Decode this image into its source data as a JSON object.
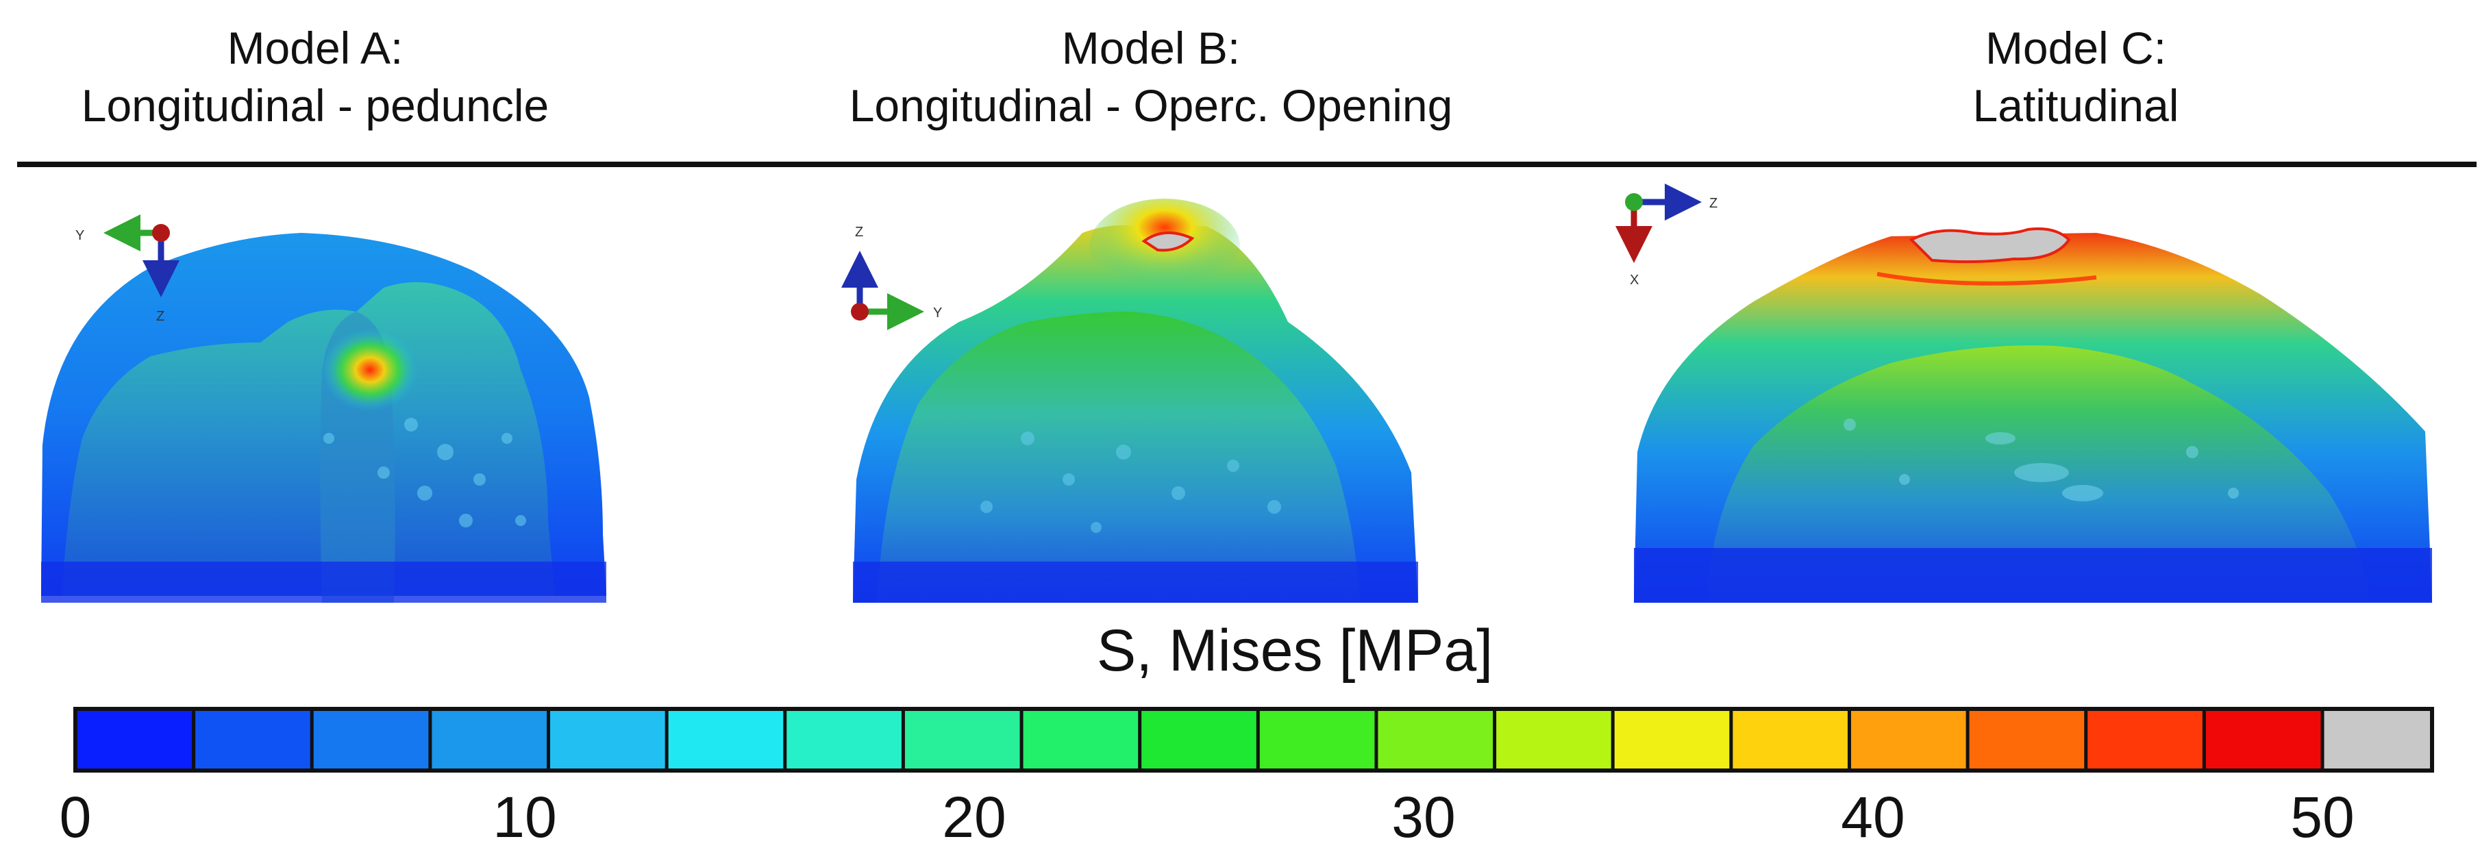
{
  "titles": [
    {
      "line1": "Model A:",
      "line2": "Longitudinal - peduncle"
    },
    {
      "line1": "Model B:",
      "line2": "Longitudinal - Operc. Opening"
    },
    {
      "line1": "Model C:",
      "line2": "Latitudinal"
    }
  ],
  "axes": {
    "model_a": {
      "horizontal": "Y",
      "vertical": "Z"
    },
    "model_b": {
      "horizontal": "Y",
      "vertical": "Z"
    },
    "model_c": {
      "horizontal": "Z",
      "vertical": "X"
    }
  },
  "axis_colors": {
    "green": "#2ea82e",
    "blue": "#1f2fb0",
    "red": "#b01818"
  },
  "colorbar": {
    "title": "S, Mises [MPa]",
    "min": 0,
    "max": 50,
    "step": 2.5,
    "colors": [
      "#0a1fff",
      "#0f53f5",
      "#1578f0",
      "#1b97ec",
      "#22c0f2",
      "#1fe8f2",
      "#26f0c8",
      "#28f09a",
      "#22f06a",
      "#1ee832",
      "#40ec22",
      "#7cf01a",
      "#b6f414",
      "#f0f014",
      "#ffd20e",
      "#ffa00c",
      "#ff6a08",
      "#ff3a08",
      "#f00808",
      "#c8c8c8"
    ],
    "overflow_color": "#c8c8c8",
    "ticks": [
      "0",
      "10",
      "20",
      "30",
      "40",
      "50"
    ]
  }
}
